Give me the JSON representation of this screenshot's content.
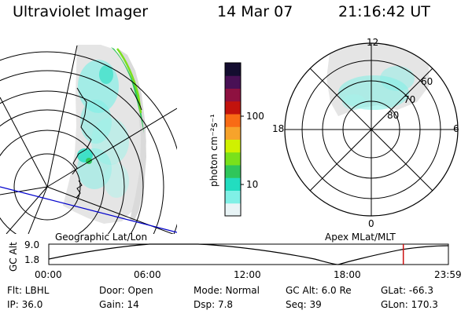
{
  "header": {
    "instrument": "Ultraviolet Imager",
    "date": "14 Mar 07",
    "time": "21:16:42 UT"
  },
  "geographic_panel": {
    "label": "Geographic Lat/Lon"
  },
  "apex_panel": {
    "label": "Apex MLat/MLT",
    "mlt_labels": [
      "12",
      "18",
      "6",
      "0"
    ],
    "mlat_labels": [
      "60",
      "70",
      "80"
    ]
  },
  "colorbar": {
    "unit_label": "photon cm⁻²s⁻¹",
    "ticks": [
      "100",
      "10"
    ],
    "colors": [
      "#e8f4f6",
      "#80f0e6",
      "#22ddc0",
      "#2fc65a",
      "#79e11b",
      "#d0f100",
      "#f7a32b",
      "#f86b15",
      "#c2130d",
      "#8e1140",
      "#491055",
      "#140d30"
    ]
  },
  "altitude_plot": {
    "y_label": "GC Alt",
    "y_ticks": [
      "9.0",
      "1.8"
    ],
    "x_ticks": [
      "00:00",
      "06:00",
      "12:00",
      "18:00",
      "23:59"
    ],
    "current_time_marker_hours": 21.28,
    "marker_color": "#cc1111"
  },
  "status": {
    "filter": "Flt: LBHL",
    "door": "Door: Open",
    "mode": "Mode: Normal",
    "gc_alt": "GC Alt: 6.0 Re",
    "glat": "GLat: -66.3",
    "ip": "IP: 36.0",
    "gain": "Gain: 14",
    "dsp": "Dsp:    7.8",
    "seq": "Seq: 39",
    "glon": "GLon: 170.3"
  }
}
